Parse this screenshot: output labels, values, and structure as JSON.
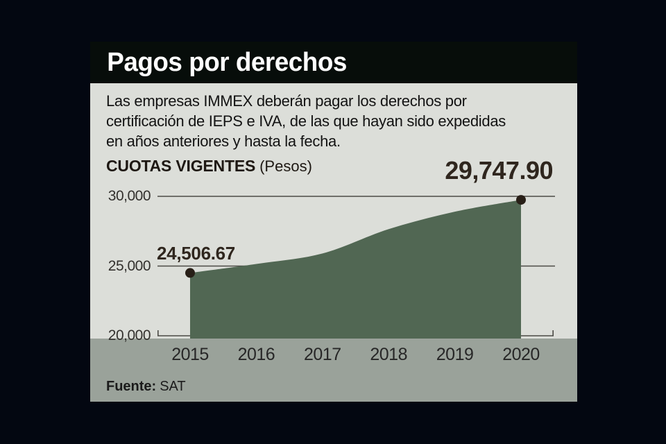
{
  "page": {
    "background": "#030711"
  },
  "card": {
    "header": {
      "title": "Pagos por derechos"
    },
    "description_lines": [
      "Las empresas IMMEX deberán pagar los derechos por",
      "certificación de IEPS e IVA, de las que hayan sido expedidas",
      "en años anteriores y hasta la fecha."
    ],
    "source": {
      "label": "Fuente:",
      "value": "SAT"
    }
  },
  "chart_data": {
    "type": "area",
    "title": "CUOTAS VIGENTES",
    "unit_label": "(Pesos)",
    "categories": [
      "2015",
      "2016",
      "2017",
      "2018",
      "2019",
      "2020"
    ],
    "values": [
      24506.67,
      25150,
      25900,
      27650,
      28900,
      29747.9
    ],
    "value_labels": {
      "2015": "24,506.67",
      "2020": "29,747.90"
    },
    "marker_indices": [
      0,
      5
    ],
    "yticks": [
      {
        "value": 30000,
        "label": "30,000"
      },
      {
        "value": 25000,
        "label": "25,000"
      },
      {
        "value": 20000,
        "label": "20,000"
      }
    ],
    "ylim": [
      20000,
      30000
    ],
    "grid": true,
    "legend": false,
    "colors": {
      "area": "#516753",
      "marker": "#281f17",
      "grid": "#4b4a45",
      "card_bg": "#dcded9",
      "band_bg": "#9aa29a",
      "header_bg": "#070d0a"
    }
  }
}
